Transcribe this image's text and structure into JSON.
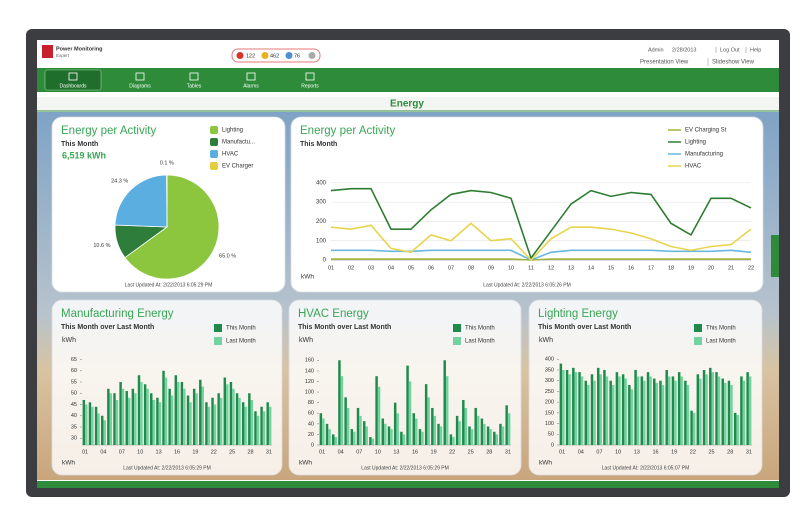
{
  "header": {
    "logo": "Power Monitoring",
    "logo_sub": "Expert",
    "alarms": [
      "122",
      "462",
      "76"
    ],
    "user": "Admin",
    "date": "2/28/2013",
    "links": [
      "Log Out",
      "Help"
    ],
    "views": [
      "Presentation View",
      "Slideshow View"
    ]
  },
  "nav": [
    "Dashboards",
    "Diagrams",
    "Tables",
    "Alarms",
    "Reports"
  ],
  "page_title": "Energy",
  "chart_data": [
    {
      "type": "pie",
      "title": "Energy per Activity",
      "subtitle": "This Month",
      "total": "6,519 kWh",
      "categories": [
        "Lighting",
        "Manufactu...",
        "HVAC",
        "EV Charger"
      ],
      "values": [
        65.0,
        10.6,
        24.3,
        0.1
      ],
      "value_labels": [
        "65.0 %",
        "10.6 %",
        "24.3 %",
        "0.1 %"
      ],
      "colors": [
        "#8cc63e",
        "#2e7d3a",
        "#5aaee0",
        "#e3cf3c"
      ],
      "footer": "Last Updated At: 2/22/2013 6:05:29 PM"
    },
    {
      "type": "line",
      "title": "Energy per Activity",
      "subtitle": "This Month",
      "ylabel": "kWh",
      "categories": [
        "01",
        "02",
        "03",
        "04",
        "05",
        "06",
        "07",
        "08",
        "09",
        "10",
        "11",
        "12",
        "13",
        "14",
        "15",
        "16",
        "17",
        "18",
        "19",
        "20",
        "21",
        "22"
      ],
      "series": [
        {
          "name": "EV Charging St",
          "color": "#a3b23a",
          "values": [
            5,
            5,
            5,
            5,
            5,
            5,
            5,
            5,
            5,
            5,
            0,
            5,
            5,
            5,
            5,
            5,
            5,
            5,
            5,
            5,
            5,
            5
          ]
        },
        {
          "name": "Lighting",
          "color": "#2e7d32",
          "values": [
            360,
            370,
            370,
            160,
            160,
            260,
            340,
            360,
            350,
            320,
            10,
            150,
            290,
            360,
            330,
            350,
            340,
            190,
            130,
            320,
            320,
            270
          ]
        },
        {
          "name": "Manufacturing",
          "color": "#6ab7e0",
          "values": [
            50,
            50,
            50,
            45,
            45,
            50,
            50,
            50,
            50,
            50,
            0,
            40,
            50,
            50,
            50,
            50,
            50,
            45,
            45,
            45,
            50,
            40
          ]
        },
        {
          "name": "HVAC",
          "color": "#e8d44d",
          "values": [
            170,
            160,
            180,
            60,
            40,
            130,
            100,
            190,
            100,
            110,
            0,
            110,
            170,
            170,
            160,
            140,
            110,
            70,
            50,
            70,
            80,
            160
          ]
        }
      ],
      "ylim": [
        0,
        420
      ],
      "yticks": [
        0,
        100,
        200,
        300,
        400
      ],
      "grid": true,
      "footer": "Last Updated At: 2/22/2013 6:05:26 PM"
    },
    {
      "type": "bar",
      "title": "Manufacturing Energy",
      "subtitle": "This Month over Last Month",
      "ylabel": "kWh",
      "categories": [
        "01",
        null,
        null,
        "04",
        null,
        null,
        "07",
        null,
        null,
        "10",
        null,
        null,
        "13",
        null,
        null,
        "16",
        null,
        null,
        "19",
        null,
        null,
        "22",
        null,
        null,
        "25",
        null,
        null,
        "28",
        null,
        null,
        "31"
      ],
      "series": [
        {
          "name": "This Month",
          "color": "#1f8a4c",
          "values": [
            47,
            46,
            44,
            40,
            52,
            50,
            55,
            51,
            52,
            58,
            54,
            50,
            48,
            60,
            52,
            58,
            55,
            49,
            52,
            56,
            46,
            48,
            50,
            57,
            55,
            50,
            46,
            50,
            42,
            44,
            46
          ]
        },
        {
          "name": "Last Month",
          "color": "#73d3a0",
          "values": [
            45,
            44,
            41,
            38,
            50,
            47,
            52,
            48,
            50,
            55,
            52,
            47,
            46,
            57,
            49,
            55,
            52,
            46,
            50,
            53,
            44,
            45,
            48,
            54,
            52,
            48,
            44,
            47,
            40,
            42,
            44
          ]
        }
      ],
      "ylim": [
        27,
        67
      ],
      "yticks": [
        30,
        35,
        40,
        45,
        50,
        55,
        60,
        65
      ],
      "footer": "Last Updated At: 2/22/2013 6:05:29 PM"
    },
    {
      "type": "bar",
      "title": "HVAC Energy",
      "subtitle": "This Month over Last Month",
      "ylabel": "kWh",
      "categories": [
        "01",
        null,
        null,
        "04",
        null,
        null,
        "07",
        null,
        null,
        "10",
        null,
        null,
        "13",
        null,
        null,
        "16",
        null,
        null,
        "19",
        null,
        null,
        "22",
        null,
        null,
        "25",
        null,
        null,
        "28",
        null,
        null,
        "31"
      ],
      "series": [
        {
          "name": "This Month",
          "color": "#1f8a4c",
          "values": [
            60,
            40,
            20,
            160,
            90,
            30,
            70,
            45,
            15,
            130,
            50,
            35,
            80,
            25,
            150,
            60,
            30,
            115,
            70,
            40,
            160,
            20,
            55,
            85,
            35,
            70,
            50,
            35,
            25,
            40,
            75
          ]
        },
        {
          "name": "Last Month",
          "color": "#73d3a0",
          "values": [
            50,
            30,
            15,
            130,
            70,
            25,
            55,
            35,
            12,
            110,
            40,
            30,
            60,
            20,
            120,
            50,
            25,
            90,
            55,
            35,
            130,
            15,
            45,
            70,
            30,
            55,
            40,
            30,
            20,
            35,
            60
          ]
        }
      ],
      "ylim": [
        0,
        170
      ],
      "yticks": [
        0,
        20,
        40,
        60,
        80,
        100,
        120,
        140,
        160
      ],
      "footer": "Last Updated At: 2/22/2013 6:05:29 PM"
    },
    {
      "type": "bar",
      "title": "Lighting Energy",
      "subtitle": "This Month over Last Month",
      "ylabel": "kWh",
      "categories": [
        "01",
        null,
        null,
        "04",
        null,
        null,
        "07",
        null,
        null,
        "10",
        null,
        null,
        "13",
        null,
        null,
        "16",
        null,
        null,
        "19",
        null,
        null,
        "22",
        null,
        null,
        "25",
        null,
        null,
        "28",
        null,
        null,
        "31"
      ],
      "series": [
        {
          "name": "This Month",
          "color": "#1f8a4c",
          "values": [
            380,
            350,
            360,
            340,
            300,
            330,
            360,
            350,
            300,
            340,
            330,
            280,
            350,
            320,
            340,
            310,
            300,
            350,
            320,
            340,
            300,
            160,
            330,
            350,
            360,
            340,
            310,
            300,
            150,
            320,
            340
          ]
        },
        {
          "name": "Last Month",
          "color": "#73d3a0",
          "values": [
            350,
            330,
            340,
            320,
            280,
            300,
            330,
            320,
            280,
            320,
            310,
            260,
            320,
            300,
            320,
            290,
            280,
            320,
            300,
            320,
            280,
            150,
            310,
            330,
            340,
            320,
            290,
            280,
            140,
            300,
            320
          ]
        }
      ],
      "ylim": [
        0,
        420
      ],
      "yticks": [
        0,
        50,
        100,
        150,
        200,
        250,
        300,
        350,
        400
      ],
      "footer": "Last Updated At: 2/22/2013 6:05:07 PM"
    }
  ]
}
